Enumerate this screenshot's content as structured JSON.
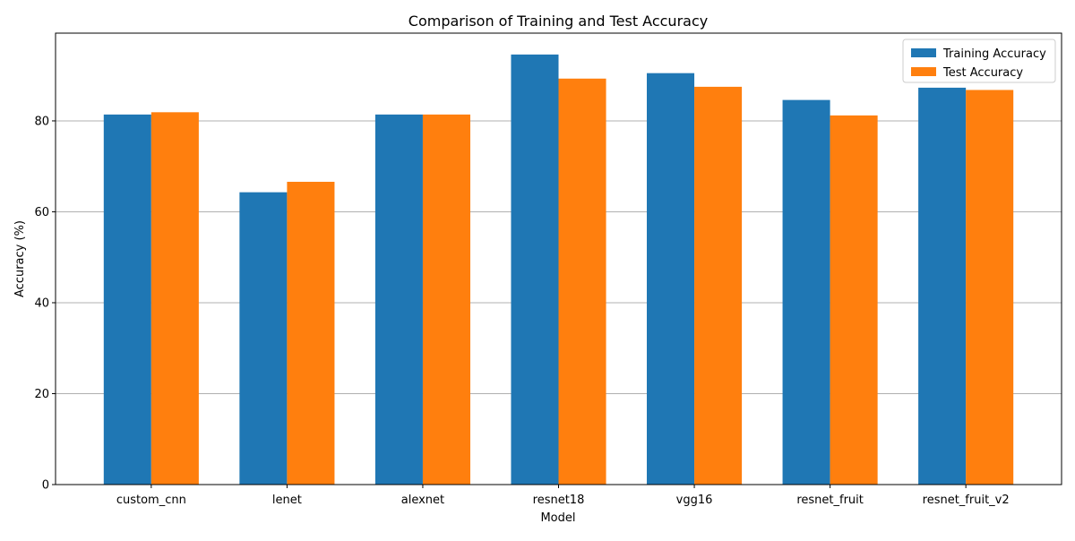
{
  "chart_data": {
    "type": "bar",
    "title": "Comparison of Training and Test Accuracy",
    "xlabel": "Model",
    "ylabel": "Accuracy (%)",
    "categories": [
      "custom_cnn",
      "lenet",
      "alexnet",
      "resnet18",
      "vgg16",
      "resnet_fruit",
      "resnet_fruit_v2"
    ],
    "series": [
      {
        "name": "Training Accuracy",
        "color": "#1f77b4",
        "values": [
          81.4,
          64.3,
          81.4,
          94.6,
          90.5,
          84.6,
          87.3
        ]
      },
      {
        "name": "Test Accuracy",
        "color": "#ff7f0e",
        "values": [
          81.9,
          66.6,
          81.4,
          89.3,
          87.5,
          81.2,
          86.8
        ]
      }
    ],
    "ylim": [
      0,
      99.3
    ],
    "yticks": [
      0,
      20,
      40,
      60,
      80
    ],
    "grid": "y",
    "legend_position": "top-right"
  }
}
